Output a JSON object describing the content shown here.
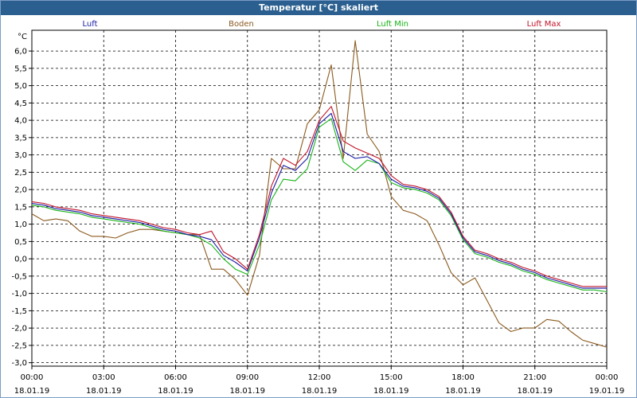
{
  "window": {
    "title": "Temperatur [°C] skaliert"
  },
  "chart_data": {
    "type": "line",
    "title": "Temperatur [°C] skaliert",
    "ylabel": "°C",
    "xlabel": "",
    "ylim": [
      -3.1,
      6.6
    ],
    "xlim": [
      0,
      24
    ],
    "grid": true,
    "y_ticks": [
      "6,0",
      "5,5",
      "5,0",
      "4,5",
      "4,0",
      "3,5",
      "3,0",
      "2,5",
      "2,0",
      "1,5",
      "1,0",
      "0,5",
      "0,0",
      "-0,5",
      "-1,0",
      "-1,5",
      "-2,0",
      "-2,5",
      "-3,0"
    ],
    "y_tick_values": [
      6.0,
      5.5,
      5.0,
      4.5,
      4.0,
      3.5,
      3.0,
      2.5,
      2.0,
      1.5,
      1.0,
      0.5,
      0.0,
      -0.5,
      -1.0,
      -1.5,
      -2.0,
      -2.5,
      -3.0
    ],
    "x_ticks": [
      {
        "t": 0,
        "time": "00:00",
        "date": "18.01.19"
      },
      {
        "t": 3,
        "time": "03:00",
        "date": "18.01.19"
      },
      {
        "t": 6,
        "time": "06:00",
        "date": "18.01.19"
      },
      {
        "t": 9,
        "time": "09:00",
        "date": "18.01.19"
      },
      {
        "t": 12,
        "time": "12:00",
        "date": "18.01.19"
      },
      {
        "t": 15,
        "time": "15:00",
        "date": "18.01.19"
      },
      {
        "t": 18,
        "time": "18:00",
        "date": "18.01.19"
      },
      {
        "t": 21,
        "time": "21:00",
        "date": "18.01.19"
      },
      {
        "t": 24,
        "time": "00:00",
        "date": "19.01.19"
      }
    ],
    "x": [
      0,
      0.5,
      1,
      1.5,
      2,
      2.5,
      3,
      3.5,
      4,
      4.5,
      5,
      5.5,
      6,
      6.5,
      7,
      7.5,
      8,
      8.5,
      9,
      9.5,
      10,
      10.5,
      11,
      11.5,
      12,
      12.5,
      13,
      13.5,
      14,
      14.5,
      15,
      15.5,
      16,
      16.5,
      17,
      17.5,
      18,
      18.5,
      19,
      19.5,
      20,
      20.5,
      21,
      21.5,
      22,
      22.5,
      23,
      23.5,
      24
    ],
    "series": [
      {
        "name": "Luft",
        "color": "#1a1aa6",
        "values": [
          1.6,
          1.55,
          1.45,
          1.4,
          1.35,
          1.25,
          1.2,
          1.15,
          1.1,
          1.05,
          0.95,
          0.85,
          0.8,
          0.7,
          0.65,
          0.55,
          0.1,
          -0.1,
          -0.35,
          0.6,
          1.9,
          2.7,
          2.55,
          2.9,
          3.9,
          4.2,
          3.1,
          2.9,
          2.95,
          2.75,
          2.3,
          2.1,
          2.05,
          1.95,
          1.75,
          1.3,
          0.6,
          0.2,
          0.1,
          -0.05,
          -0.15,
          -0.3,
          -0.4,
          -0.55,
          -0.65,
          -0.75,
          -0.85,
          -0.85,
          -0.85
        ]
      },
      {
        "name": "Boden",
        "color": "#8b5a1e",
        "values": [
          1.3,
          1.1,
          1.15,
          1.1,
          0.8,
          0.65,
          0.65,
          0.6,
          0.75,
          0.85,
          0.85,
          0.8,
          0.75,
          0.7,
          0.7,
          -0.3,
          -0.3,
          -0.6,
          -1.05,
          0.1,
          2.9,
          2.6,
          2.6,
          3.9,
          4.3,
          5.6,
          2.9,
          6.3,
          3.6,
          3.1,
          1.8,
          1.4,
          1.3,
          1.1,
          0.4,
          -0.4,
          -0.75,
          -0.55,
          -1.2,
          -1.85,
          -2.1,
          -2.0,
          -2.0,
          -1.75,
          -1.8,
          -2.1,
          -2.35,
          -2.45,
          -2.55
        ]
      },
      {
        "name": "Luft Min",
        "color": "#18b418",
        "values": [
          1.55,
          1.5,
          1.4,
          1.35,
          1.3,
          1.2,
          1.15,
          1.1,
          1.05,
          1.0,
          0.9,
          0.8,
          0.75,
          0.7,
          0.6,
          0.4,
          0.0,
          -0.3,
          -0.45,
          0.4,
          1.7,
          2.3,
          2.25,
          2.6,
          3.8,
          4.05,
          2.8,
          2.55,
          2.85,
          2.75,
          2.2,
          2.05,
          2.0,
          1.9,
          1.7,
          1.25,
          0.55,
          0.15,
          0.05,
          -0.1,
          -0.2,
          -0.35,
          -0.45,
          -0.6,
          -0.7,
          -0.8,
          -0.9,
          -0.9,
          -0.95
        ]
      },
      {
        "name": "Luft Max",
        "color": "#c0142a",
        "values": [
          1.65,
          1.6,
          1.5,
          1.45,
          1.4,
          1.3,
          1.25,
          1.2,
          1.15,
          1.1,
          1.0,
          0.9,
          0.85,
          0.75,
          0.7,
          0.8,
          0.2,
          0.0,
          -0.3,
          0.7,
          2.1,
          2.9,
          2.7,
          3.1,
          4.0,
          4.4,
          3.4,
          3.2,
          3.05,
          2.9,
          2.4,
          2.15,
          2.1,
          2.0,
          1.8,
          1.35,
          0.65,
          0.25,
          0.15,
          0.0,
          -0.1,
          -0.25,
          -0.35,
          -0.5,
          -0.6,
          -0.7,
          -0.8,
          -0.8,
          -0.8
        ]
      }
    ]
  }
}
